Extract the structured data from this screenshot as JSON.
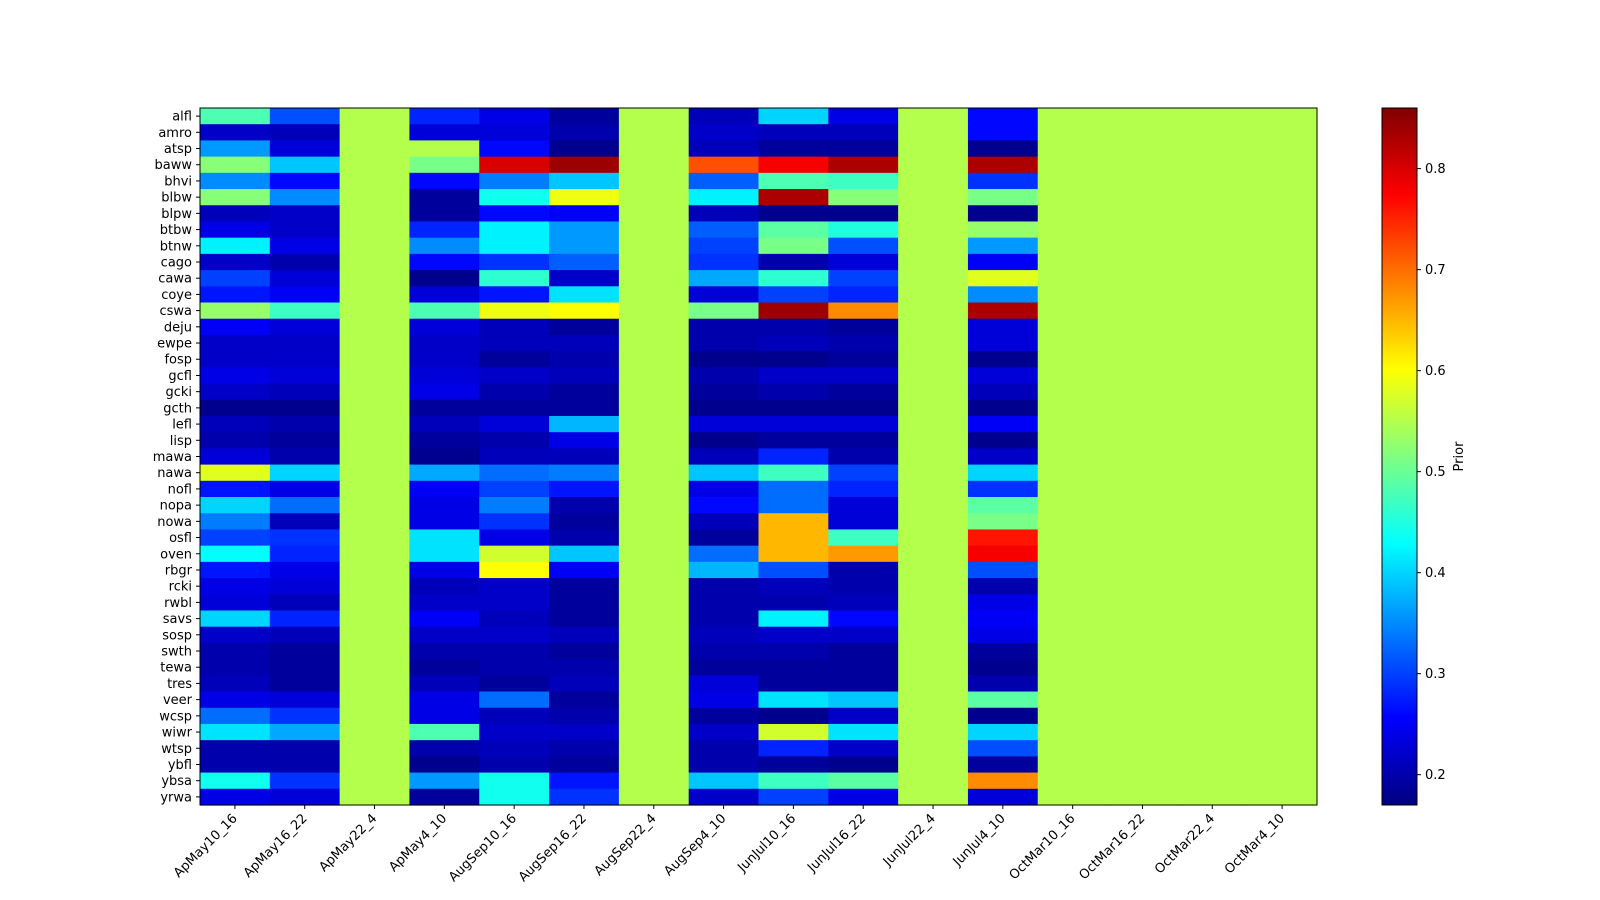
{
  "chart_data": {
    "type": "heatmap",
    "colormap": "jet",
    "colorbar_label": "Prior",
    "vmin": 0.17,
    "vmax": 0.86,
    "colorbar_ticks": [
      0.2,
      0.3,
      0.4,
      0.5,
      0.6,
      0.7,
      0.8
    ],
    "colorbar_tick_labels": [
      "0.2",
      "0.3",
      "0.4",
      "0.5",
      "0.6",
      "0.7",
      "0.8"
    ],
    "columns": [
      "ApMay10_16",
      "ApMay16_22",
      "ApMay22_4",
      "ApMay4_10",
      "AugSep10_16",
      "AugSep16_22",
      "AugSep22_4",
      "AugSep4_10",
      "JunJul10_16",
      "JunJul16_22",
      "JunJul22_4",
      "JunJul4_10",
      "OctMar10_16",
      "OctMar16_22",
      "OctMar22_4",
      "OctMar4_10"
    ],
    "rows": [
      "alfl",
      "amro",
      "atsp",
      "baww",
      "bhvi",
      "blbw",
      "blpw",
      "btbw",
      "btnw",
      "cago",
      "cawa",
      "coye",
      "cswa",
      "deju",
      "ewpe",
      "fosp",
      "gcfl",
      "gcki",
      "gcth",
      "lefl",
      "lisp",
      "mawa",
      "nawa",
      "nofl",
      "nopa",
      "nowa",
      "osfl",
      "oven",
      "rbgr",
      "rcki",
      "rwbl",
      "savs",
      "sosp",
      "swth",
      "tewa",
      "tres",
      "veer",
      "wcsp",
      "wiwr",
      "wtsp",
      "ybfl",
      "ybsa",
      "yrwa"
    ],
    "values": [
      [
        0.48,
        0.31,
        0.55,
        0.28,
        0.24,
        0.19,
        0.55,
        0.21,
        0.4,
        0.24,
        0.55,
        0.26,
        0.55,
        0.55,
        0.55,
        0.55
      ],
      [
        0.22,
        0.21,
        0.55,
        0.23,
        0.23,
        0.2,
        0.55,
        0.22,
        0.21,
        0.21,
        0.55,
        0.26,
        0.55,
        0.55,
        0.55,
        0.55
      ],
      [
        0.36,
        0.23,
        0.55,
        0.55,
        0.26,
        0.18,
        0.55,
        0.21,
        0.19,
        0.19,
        0.55,
        0.18,
        0.55,
        0.55,
        0.55,
        0.55
      ],
      [
        0.52,
        0.39,
        0.55,
        0.51,
        0.8,
        0.84,
        0.55,
        0.72,
        0.78,
        0.83,
        0.55,
        0.83,
        0.55,
        0.55,
        0.55,
        0.55
      ],
      [
        0.35,
        0.26,
        0.55,
        0.26,
        0.34,
        0.39,
        0.55,
        0.32,
        0.48,
        0.47,
        0.55,
        0.29,
        0.55,
        0.55,
        0.55,
        0.55
      ],
      [
        0.52,
        0.35,
        0.55,
        0.19,
        0.44,
        0.59,
        0.55,
        0.42,
        0.83,
        0.52,
        0.55,
        0.51,
        0.55,
        0.55,
        0.55,
        0.55
      ],
      [
        0.21,
        0.22,
        0.55,
        0.19,
        0.26,
        0.25,
        0.55,
        0.21,
        0.18,
        0.18,
        0.55,
        0.18,
        0.55,
        0.55,
        0.55,
        0.55
      ],
      [
        0.24,
        0.22,
        0.55,
        0.28,
        0.42,
        0.36,
        0.55,
        0.32,
        0.49,
        0.45,
        0.55,
        0.53,
        0.55,
        0.55,
        0.55,
        0.55
      ],
      [
        0.42,
        0.24,
        0.55,
        0.35,
        0.42,
        0.36,
        0.55,
        0.3,
        0.51,
        0.31,
        0.55,
        0.36,
        0.55,
        0.55,
        0.55,
        0.55
      ],
      [
        0.22,
        0.2,
        0.55,
        0.26,
        0.29,
        0.32,
        0.55,
        0.29,
        0.2,
        0.23,
        0.55,
        0.25,
        0.55,
        0.55,
        0.55,
        0.55
      ],
      [
        0.3,
        0.23,
        0.55,
        0.18,
        0.46,
        0.22,
        0.55,
        0.37,
        0.46,
        0.3,
        0.55,
        0.58,
        0.55,
        0.55,
        0.55,
        0.55
      ],
      [
        0.27,
        0.25,
        0.55,
        0.23,
        0.27,
        0.41,
        0.55,
        0.23,
        0.3,
        0.28,
        0.55,
        0.35,
        0.55,
        0.55,
        0.55,
        0.55
      ],
      [
        0.53,
        0.47,
        0.55,
        0.48,
        0.59,
        0.6,
        0.55,
        0.51,
        0.84,
        0.68,
        0.55,
        0.83,
        0.55,
        0.55,
        0.55,
        0.55
      ],
      [
        0.25,
        0.23,
        0.55,
        0.23,
        0.21,
        0.19,
        0.55,
        0.2,
        0.2,
        0.19,
        0.55,
        0.23,
        0.55,
        0.55,
        0.55,
        0.55
      ],
      [
        0.22,
        0.22,
        0.55,
        0.22,
        0.21,
        0.21,
        0.55,
        0.2,
        0.21,
        0.2,
        0.55,
        0.23,
        0.55,
        0.55,
        0.55,
        0.55
      ],
      [
        0.22,
        0.22,
        0.55,
        0.22,
        0.19,
        0.2,
        0.55,
        0.18,
        0.18,
        0.19,
        0.55,
        0.18,
        0.55,
        0.55,
        0.55,
        0.55
      ],
      [
        0.24,
        0.23,
        0.55,
        0.23,
        0.22,
        0.21,
        0.55,
        0.2,
        0.22,
        0.22,
        0.55,
        0.23,
        0.55,
        0.55,
        0.55,
        0.55
      ],
      [
        0.22,
        0.21,
        0.55,
        0.24,
        0.2,
        0.19,
        0.55,
        0.19,
        0.2,
        0.19,
        0.55,
        0.21,
        0.55,
        0.55,
        0.55,
        0.55
      ],
      [
        0.18,
        0.18,
        0.55,
        0.19,
        0.19,
        0.19,
        0.55,
        0.18,
        0.18,
        0.18,
        0.55,
        0.18,
        0.55,
        0.55,
        0.55,
        0.55
      ],
      [
        0.21,
        0.2,
        0.55,
        0.21,
        0.23,
        0.38,
        0.55,
        0.23,
        0.23,
        0.23,
        0.55,
        0.25,
        0.55,
        0.55,
        0.55,
        0.55
      ],
      [
        0.2,
        0.19,
        0.55,
        0.19,
        0.2,
        0.24,
        0.55,
        0.18,
        0.19,
        0.19,
        0.55,
        0.18,
        0.55,
        0.55,
        0.55,
        0.55
      ],
      [
        0.23,
        0.2,
        0.55,
        0.18,
        0.21,
        0.21,
        0.55,
        0.21,
        0.28,
        0.2,
        0.55,
        0.22,
        0.55,
        0.55,
        0.55,
        0.55
      ],
      [
        0.58,
        0.4,
        0.55,
        0.37,
        0.33,
        0.34,
        0.55,
        0.39,
        0.47,
        0.3,
        0.55,
        0.4,
        0.55,
        0.55,
        0.55,
        0.55
      ],
      [
        0.27,
        0.24,
        0.55,
        0.25,
        0.3,
        0.27,
        0.55,
        0.24,
        0.33,
        0.28,
        0.55,
        0.29,
        0.55,
        0.55,
        0.55,
        0.55
      ],
      [
        0.4,
        0.33,
        0.55,
        0.24,
        0.34,
        0.2,
        0.55,
        0.26,
        0.33,
        0.23,
        0.55,
        0.49,
        0.55,
        0.55,
        0.55,
        0.55
      ],
      [
        0.34,
        0.21,
        0.55,
        0.24,
        0.29,
        0.19,
        0.55,
        0.21,
        0.65,
        0.23,
        0.55,
        0.51,
        0.55,
        0.55,
        0.55,
        0.55
      ],
      [
        0.3,
        0.29,
        0.55,
        0.41,
        0.24,
        0.2,
        0.55,
        0.19,
        0.65,
        0.47,
        0.55,
        0.76,
        0.55,
        0.55,
        0.55,
        0.55
      ],
      [
        0.43,
        0.28,
        0.55,
        0.41,
        0.57,
        0.39,
        0.55,
        0.33,
        0.65,
        0.67,
        0.55,
        0.78,
        0.55,
        0.55,
        0.55,
        0.55
      ],
      [
        0.27,
        0.24,
        0.55,
        0.24,
        0.6,
        0.25,
        0.55,
        0.38,
        0.31,
        0.2,
        0.55,
        0.31,
        0.55,
        0.55,
        0.55,
        0.55
      ],
      [
        0.24,
        0.23,
        0.55,
        0.21,
        0.22,
        0.19,
        0.55,
        0.2,
        0.21,
        0.2,
        0.55,
        0.2,
        0.55,
        0.55,
        0.55,
        0.55
      ],
      [
        0.23,
        0.21,
        0.55,
        0.22,
        0.22,
        0.19,
        0.55,
        0.2,
        0.2,
        0.21,
        0.55,
        0.24,
        0.55,
        0.55,
        0.55,
        0.55
      ],
      [
        0.4,
        0.28,
        0.55,
        0.25,
        0.21,
        0.19,
        0.55,
        0.2,
        0.42,
        0.26,
        0.55,
        0.25,
        0.55,
        0.55,
        0.55,
        0.55
      ],
      [
        0.22,
        0.21,
        0.55,
        0.22,
        0.22,
        0.21,
        0.55,
        0.21,
        0.22,
        0.22,
        0.55,
        0.24,
        0.55,
        0.55,
        0.55,
        0.55
      ],
      [
        0.2,
        0.19,
        0.55,
        0.2,
        0.2,
        0.19,
        0.55,
        0.2,
        0.2,
        0.19,
        0.55,
        0.19,
        0.55,
        0.55,
        0.55,
        0.55
      ],
      [
        0.2,
        0.19,
        0.55,
        0.19,
        0.2,
        0.2,
        0.55,
        0.19,
        0.19,
        0.19,
        0.55,
        0.18,
        0.55,
        0.55,
        0.55,
        0.55
      ],
      [
        0.21,
        0.19,
        0.55,
        0.21,
        0.19,
        0.21,
        0.55,
        0.23,
        0.19,
        0.19,
        0.55,
        0.2,
        0.55,
        0.55,
        0.55,
        0.55
      ],
      [
        0.24,
        0.23,
        0.55,
        0.24,
        0.33,
        0.19,
        0.55,
        0.24,
        0.41,
        0.39,
        0.55,
        0.49,
        0.55,
        0.55,
        0.55,
        0.55
      ],
      [
        0.33,
        0.29,
        0.55,
        0.24,
        0.21,
        0.2,
        0.55,
        0.19,
        0.18,
        0.22,
        0.55,
        0.18,
        0.55,
        0.55,
        0.55,
        0.55
      ],
      [
        0.41,
        0.37,
        0.55,
        0.48,
        0.22,
        0.22,
        0.55,
        0.22,
        0.57,
        0.41,
        0.55,
        0.4,
        0.55,
        0.55,
        0.55,
        0.55
      ],
      [
        0.2,
        0.2,
        0.55,
        0.2,
        0.21,
        0.2,
        0.55,
        0.2,
        0.28,
        0.22,
        0.55,
        0.31,
        0.55,
        0.55,
        0.55,
        0.55
      ],
      [
        0.2,
        0.2,
        0.55,
        0.18,
        0.2,
        0.19,
        0.55,
        0.2,
        0.19,
        0.18,
        0.55,
        0.19,
        0.55,
        0.55,
        0.55,
        0.55
      ],
      [
        0.44,
        0.29,
        0.55,
        0.36,
        0.44,
        0.27,
        0.55,
        0.39,
        0.47,
        0.49,
        0.55,
        0.68,
        0.55,
        0.55,
        0.55,
        0.55
      ],
      [
        0.24,
        0.23,
        0.55,
        0.19,
        0.44,
        0.29,
        0.55,
        0.22,
        0.3,
        0.24,
        0.55,
        0.23,
        0.55,
        0.55,
        0.55,
        0.55
      ]
    ]
  }
}
